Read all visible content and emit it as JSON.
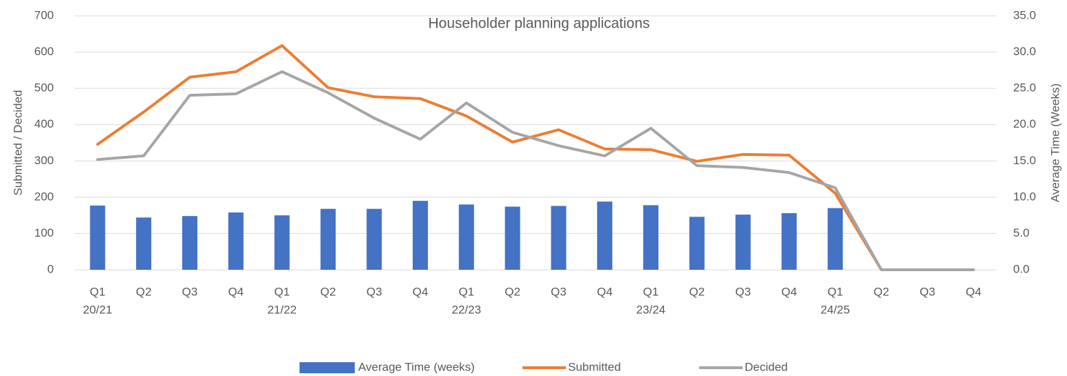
{
  "chart_data": {
    "type": "combo",
    "title": "Householder planning applications",
    "y_label": "Submitted / Decided",
    "y2_label": "Average Time (Weeks)",
    "categories": [
      "Q1",
      "Q2",
      "Q3",
      "Q4",
      "Q1",
      "Q2",
      "Q3",
      "Q4",
      "Q1",
      "Q2",
      "Q3",
      "Q4",
      "Q1",
      "Q2",
      "Q3",
      "Q4",
      "Q1",
      "Q2",
      "Q3",
      "Q4"
    ],
    "years": [
      "20/21",
      null,
      null,
      null,
      "21/22",
      null,
      null,
      null,
      "22/23",
      null,
      null,
      null,
      "23/24",
      null,
      null,
      null,
      "24/25",
      null,
      null,
      null
    ],
    "ylim": [
      0,
      700
    ],
    "yticks": [
      0,
      100,
      200,
      300,
      400,
      500,
      600,
      700
    ],
    "y2lim": [
      0,
      35
    ],
    "y2ticks": [
      {
        "value": 0,
        "label": "0.0"
      },
      {
        "value": 5,
        "label": "5.0"
      },
      {
        "value": 10,
        "label": "10.0"
      },
      {
        "value": 15,
        "label": "15.0"
      },
      {
        "value": 20,
        "label": "20.0"
      },
      {
        "value": 25,
        "label": "25.0"
      },
      {
        "value": 30,
        "label": "30.0"
      },
      {
        "value": 35,
        "label": "35.0"
      }
    ],
    "grid": true,
    "legend": "bottom",
    "series": [
      {
        "name": "Average Time (weeks)",
        "type": "bar",
        "axis": "y2",
        "color": "#4472c4",
        "values": [
          8.85,
          7.2,
          7.4,
          7.9,
          7.5,
          8.4,
          8.4,
          9.5,
          9.0,
          8.7,
          8.8,
          9.4,
          8.9,
          7.3,
          7.6,
          7.8,
          8.5,
          null,
          null,
          null
        ]
      },
      {
        "name": "Submitted",
        "type": "line",
        "axis": "y",
        "color": "#ed7d31",
        "values": [
          346,
          435,
          531,
          546,
          618,
          502,
          477,
          472,
          424,
          352,
          386,
          333,
          331,
          299,
          318,
          316,
          211,
          0,
          0,
          0
        ]
      },
      {
        "name": "Decided",
        "type": "line",
        "axis": "y",
        "color": "#a5a5a5",
        "values": [
          304,
          314,
          481,
          485,
          546,
          488,
          418,
          360,
          460,
          379,
          342,
          314,
          390,
          287,
          282,
          268,
          226,
          0,
          0,
          0
        ]
      }
    ]
  }
}
